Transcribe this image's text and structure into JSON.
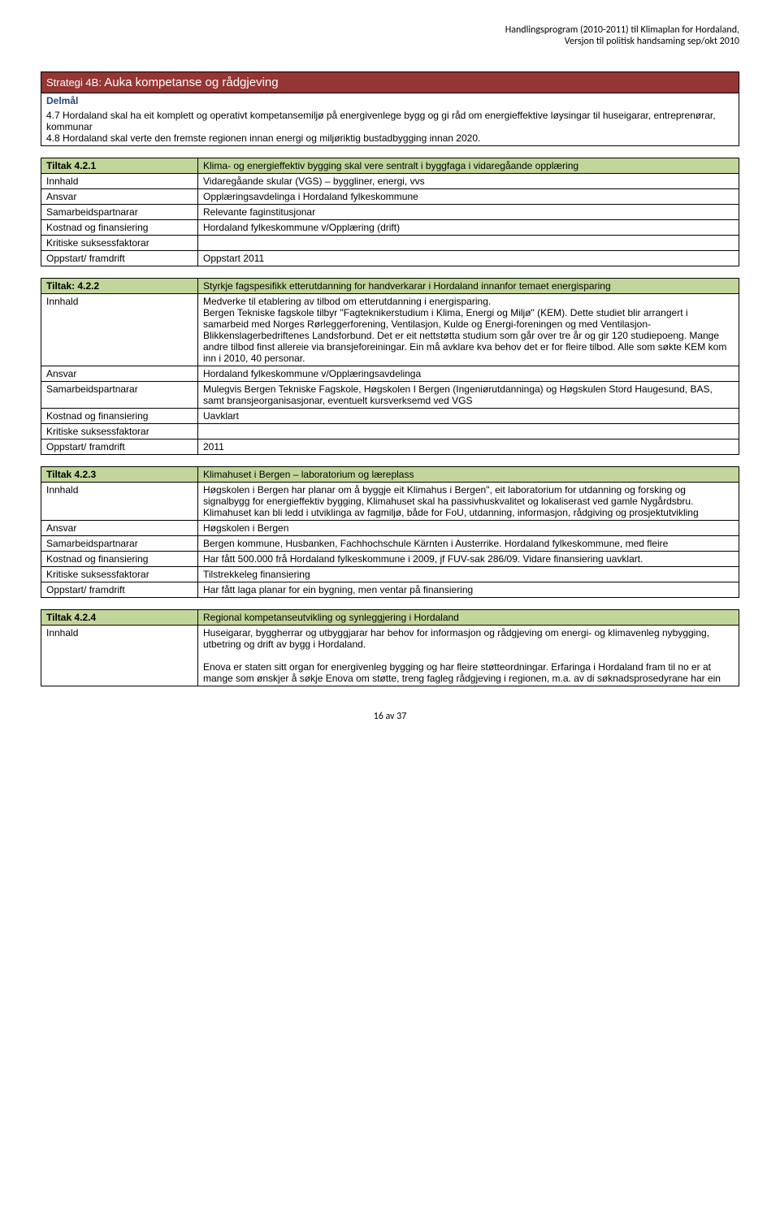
{
  "header": {
    "line1": "Handlingsprogram (2010-2011) til Klimaplan for Hordaland,",
    "line2": "Versjon til politisk handsaming sep/okt 2010"
  },
  "strategy": {
    "prefix": "Strategi  4B:",
    "title": "Auka kompetanse og rådgjeving"
  },
  "delmal_label": "Delmål",
  "intro": "4.7 Hordaland skal ha eit komplett og operativt kompetansemiljø på energivenlege bygg og gi råd om energieffektive løysingar til huseigarar, entreprenørar, kommunar\n4.8 Hordaland skal verte den fremste regionen innan energi og miljøriktig bustadbygging innan 2020.",
  "tables": [
    {
      "id": "Tiltak 4.2.1",
      "title": "Klima- og energieffektiv bygging skal vere sentralt i byggfaga i vidaregåande opplæring",
      "rows": [
        {
          "label": "Innhald",
          "value": "Vidaregåande skular (VGS) – byggliner, energi, vvs"
        },
        {
          "label": "Ansvar",
          "value": "Opplæringsavdelinga i Hordaland fylkeskommune"
        },
        {
          "label": "Samarbeidspartnarar",
          "value": "Relevante faginstitusjonar"
        },
        {
          "label": "Kostnad og finansiering",
          "value": "Hordaland fylkeskommune v/Opplæring (drift)"
        },
        {
          "label": "Kritiske suksessfaktorar",
          "value": ""
        },
        {
          "label": "Oppstart/ framdrift",
          "value": "Oppstart 2011"
        }
      ]
    },
    {
      "id": "Tiltak: 4.2.2",
      "title": "Styrkje fagspesifikk etterutdanning for handverkarar i Hordaland innanfor temaet energisparing",
      "rows": [
        {
          "label": "Innhald",
          "value": "Medverke til etablering av tilbod om etterutdanning i energisparing.\nBergen Tekniske fagskole tilbyr \"Fagteknikerstudium i Klima, Energi og Miljø\" (KEM). Dette studiet blir arrangert i samarbeid med Norges Rørleggerforening, Ventilasjon, Kulde og Energi-foreningen og med Ventilasjon-Blikkenslagerbedriftenes Landsforbund. Det er eit nettstøtta studium som går over tre år og gir 120 studiepoeng. Mange andre tilbod finst allereie via bransjeforeiningar. Ein må avklare kva behov det er for fleire tilbod. Alle som søkte KEM kom inn i 2010, 40 personar."
        },
        {
          "label": "Ansvar",
          "value": "Hordaland fylkeskommune v/Opplæringsavdelinga"
        },
        {
          "label": "Samarbeidspartnarar",
          "value": "Mulegvis Bergen Tekniske Fagskole, Høgskolen I Bergen (Ingeniørutdanninga) og Høgskulen Stord Haugesund, BAS, samt bransjeorganisasjonar, eventuelt kursverksemd ved VGS"
        },
        {
          "label": "Kostnad og finansiering",
          "value": "Uavklart"
        },
        {
          "label": "Kritiske suksessfaktorar",
          "value": ""
        },
        {
          "label": "Oppstart/ framdrift",
          "value": "2011"
        }
      ]
    },
    {
      "id": "Tiltak 4.2.3",
      "title": "Klimahuset i Bergen – laboratorium og læreplass",
      "rows": [
        {
          "label": "Innhald",
          "value": "Høgskolen i Bergen har planar om å byggje eit Klimahus i Bergen\", eit laboratorium for utdanning og forsking og signalbygg for energieffektiv bygging, Klimahuset skal ha passivhuskvalitet og lokaliserast ved gamle Nygårdsbru. Klimahuset kan bli ledd i utviklinga av fagmiljø, både for FoU, utdanning, informasjon, rådgiving og prosjektutvikling"
        },
        {
          "label": "Ansvar",
          "value": "Høgskolen i Bergen"
        },
        {
          "label": "Samarbeidspartnarar",
          "value": "Bergen kommune, Husbanken, Fachhochschule Kärnten i Austerrike. Hordaland fylkeskommune, med fleire"
        },
        {
          "label": "Kostnad og finansiering",
          "value": "Har fått 500.000 frå Hordaland fylkeskommune i 2009, jf FUV-sak 286/09. Vidare finansiering uavklart."
        },
        {
          "label": "Kritiske suksessfaktorar",
          "value": "Tilstrekkeleg finansiering"
        },
        {
          "label": "Oppstart/ framdrift",
          "value": "Har fått laga planar for ein bygning, men ventar på finansiering"
        }
      ]
    },
    {
      "id": "Tiltak 4.2.4",
      "title": "Regional kompetanseutvikling og synleggjering i Hordaland",
      "rows": [
        {
          "label": "Innhald",
          "value": "Huseigarar, byggherrar og utbyggjarar har behov for informasjon og rådgjeving om energi- og klimavenleg nybygging, utbetring og drift av bygg i Hordaland.\n\nEnova er staten sitt organ for energivenleg bygging og har fleire støtteordningar. Erfaringa i Hordaland fram til no er at mange som ønskjer å søkje Enova om støtte, treng fagleg rådgjeving i regionen, m.a. av di søknadsprosedyrane har ein"
        }
      ]
    }
  ],
  "footer": "16 av 37",
  "colors": {
    "banner_bg": "#943634",
    "title_row_bg": "#c2d69b",
    "delmal_color": "#1f497d"
  }
}
